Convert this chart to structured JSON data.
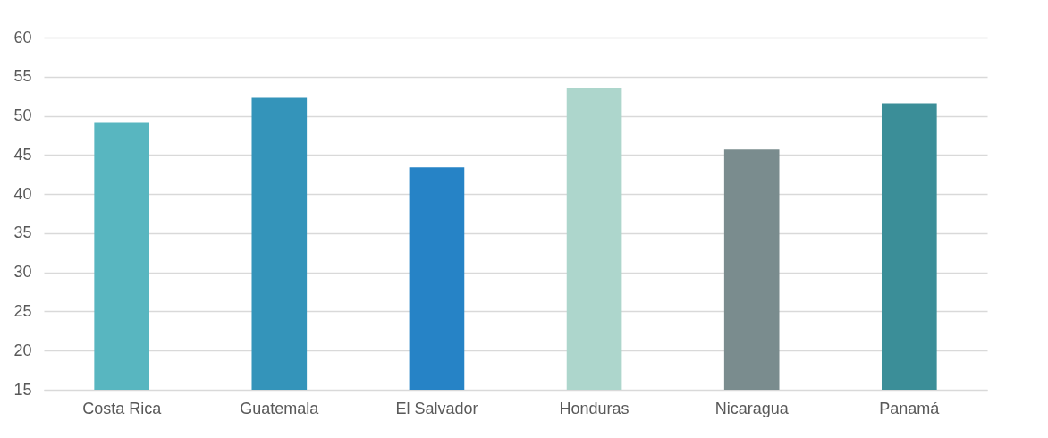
{
  "chart_data": {
    "type": "bar",
    "categories": [
      "Costa Rica",
      "Guatemala",
      "El Salvador",
      "Honduras",
      "Nicaragua",
      "Panamá"
    ],
    "values": [
      49.1,
      52.3,
      43.4,
      53.6,
      45.7,
      51.6
    ],
    "colors": [
      "#58b6c0",
      "#3494ba",
      "#2683c6",
      "#add6cc",
      "#7a8c8e",
      "#3b8e98"
    ],
    "ylim": [
      15,
      60
    ],
    "yticks": [
      15,
      20,
      25,
      30,
      35,
      40,
      45,
      50,
      55,
      60
    ],
    "grid": "y"
  }
}
